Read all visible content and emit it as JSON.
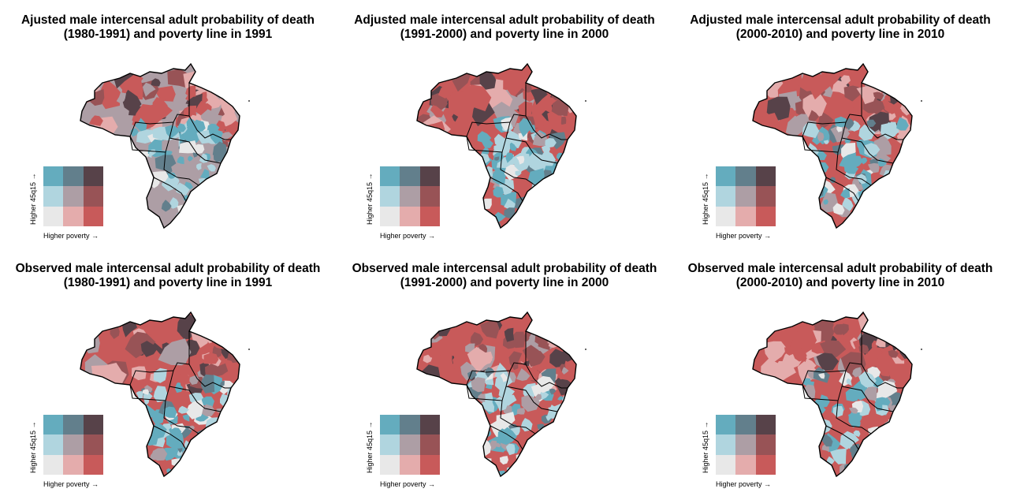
{
  "panels": [
    {
      "title_line1": "Ajusted male intercensal adult probability of death",
      "title_line2": "(1980-1991) and poverty line in 1991",
      "variant": 0
    },
    {
      "title_line1": "Adjusted male intercensal adult probability of death",
      "title_line2": "(1991-2000) and poverty line in 2000",
      "variant": 1
    },
    {
      "title_line1": "Adjusted male intercensal adult probability of death",
      "title_line2": "(2000-2010) and poverty line in 2010",
      "variant": 2
    },
    {
      "title_line1": "Observed male intercensal adult probability of death",
      "title_line2": "(1980-1991) and poverty line in 1991",
      "variant": 3
    },
    {
      "title_line1": "Observed male intercensal adult probability of death",
      "title_line2": "(1991-2000) and poverty line in 2000",
      "variant": 4
    },
    {
      "title_line1": "Observed male intercensal adult probability of death",
      "title_line2": "(2000-2010) and poverty line in 2010",
      "variant": 5
    }
  ],
  "legend": {
    "y_label": "Higher 45q15 →",
    "x_label": "Higher poverty →",
    "colors": [
      [
        "#64acbe",
        "#627f8c",
        "#574249"
      ],
      [
        "#b0d5df",
        "#ad9ea5",
        "#985356"
      ],
      [
        "#e8e8e8",
        "#e4acac",
        "#c85a5a"
      ]
    ]
  },
  "palette": [
    "#e8e8e8",
    "#e4acac",
    "#c85a5a",
    "#b0d5df",
    "#ad9ea5",
    "#985356",
    "#64acbe",
    "#627f8c",
    "#574249"
  ]
}
